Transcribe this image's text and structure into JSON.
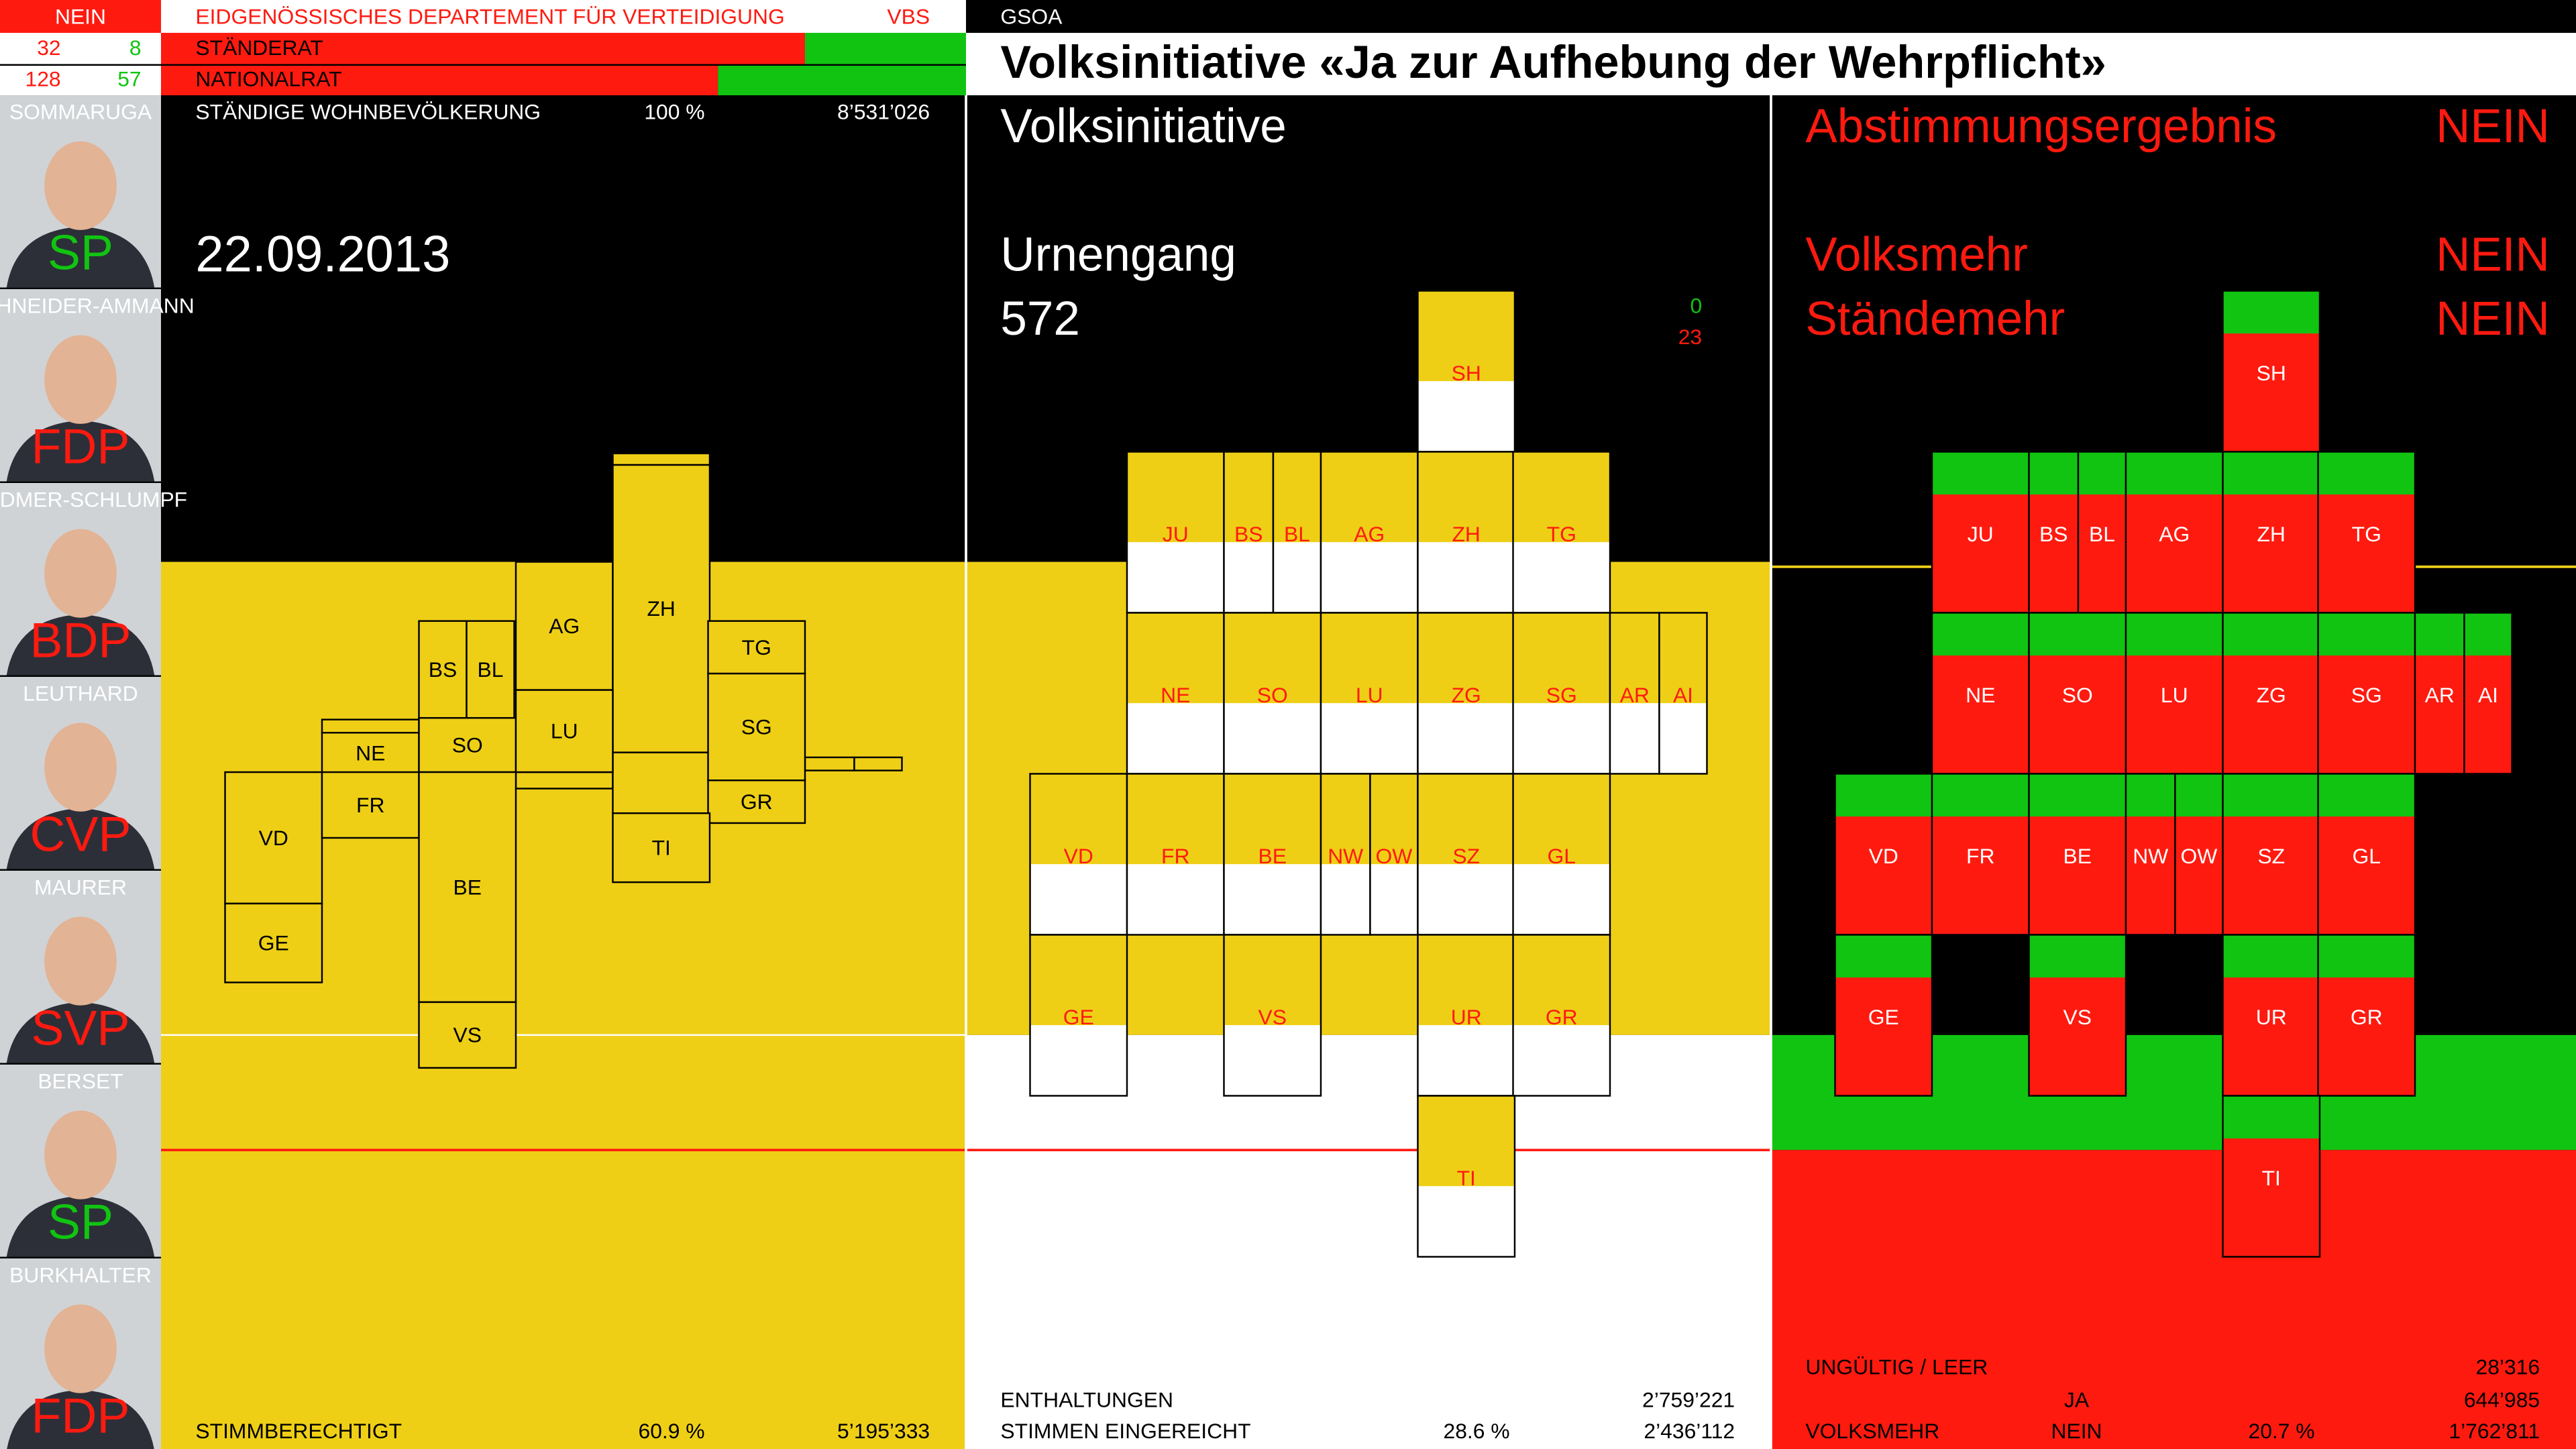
{
  "header": {
    "status": "NEIN",
    "department": "EIDGENÖSSISCHES DEPARTEMENT FÜR VERTEIDIGUNG",
    "department_short": "VBS",
    "committee": "GSOA",
    "title": "Volksinitiative «Ja zur Aufhebung der Wehrpflicht»",
    "councils": [
      {
        "name": "STÄNDERAT",
        "values": [
          32,
          8
        ]
      },
      {
        "name": "NATIONALRAT",
        "values": [
          128,
          57
        ]
      }
    ]
  },
  "federal_council": [
    {
      "name": "SOMMARUGA",
      "party": "SP"
    },
    {
      "name": "SCHNEIDER-AMMANN",
      "party": "FDP"
    },
    {
      "name": "WIDMER-SCHLUMPF",
      "party": "BDP"
    },
    {
      "name": "LEUTHARD",
      "party": "CVP"
    },
    {
      "name": "MAURER",
      "party": "SVP"
    },
    {
      "name": "BERSET",
      "party": "SP"
    },
    {
      "name": "BURKHALTER",
      "party": "FDP"
    }
  ],
  "population": {
    "label": "STÄNDIGE WOHNBEVÖLKERUNG",
    "share": "100 %",
    "count": "8’531’026"
  },
  "date": "22.09.2013",
  "electorate": {
    "label": "STIMMBERECHTIGT",
    "share": "60.9 %",
    "count": "5’195’333"
  },
  "initiative": {
    "label": "Volksinitiative",
    "count_label": "Urnengang",
    "count": 572,
    "tally": [
      0,
      23
    ]
  },
  "abstentions": {
    "label": "ENTHALTUNGEN",
    "count": "2’759’221"
  },
  "submitted": {
    "label": "STIMMEN EINGEREICHT",
    "share": "28.6 %",
    "count": "2’436’112"
  },
  "result": {
    "label": "Abstimmungsergebnis",
    "value": "NEIN",
    "popular": {
      "label": "Volksmehr",
      "value": "NEIN"
    },
    "cantonal": {
      "label": "Ständemehr",
      "value": "NEIN"
    }
  },
  "invalid": {
    "label": "UNGÜLTIG / LEER",
    "count": "28’316"
  },
  "yes": {
    "label": "JA",
    "count": "644’985"
  },
  "majority": {
    "label": "VOLKSMEHR",
    "value": "NEIN",
    "share": "20.7 %",
    "count": "1’762’811"
  },
  "cantons": [
    "SH",
    "JU",
    "BS",
    "BL",
    "AG",
    "ZH",
    "TG",
    "NE",
    "SO",
    "LU",
    "ZG",
    "SG",
    "AR",
    "AI",
    "VD",
    "FR",
    "BE",
    "NW",
    "OW",
    "SZ",
    "GL",
    "GE",
    "VS",
    "UR",
    "GR",
    "TI"
  ]
}
